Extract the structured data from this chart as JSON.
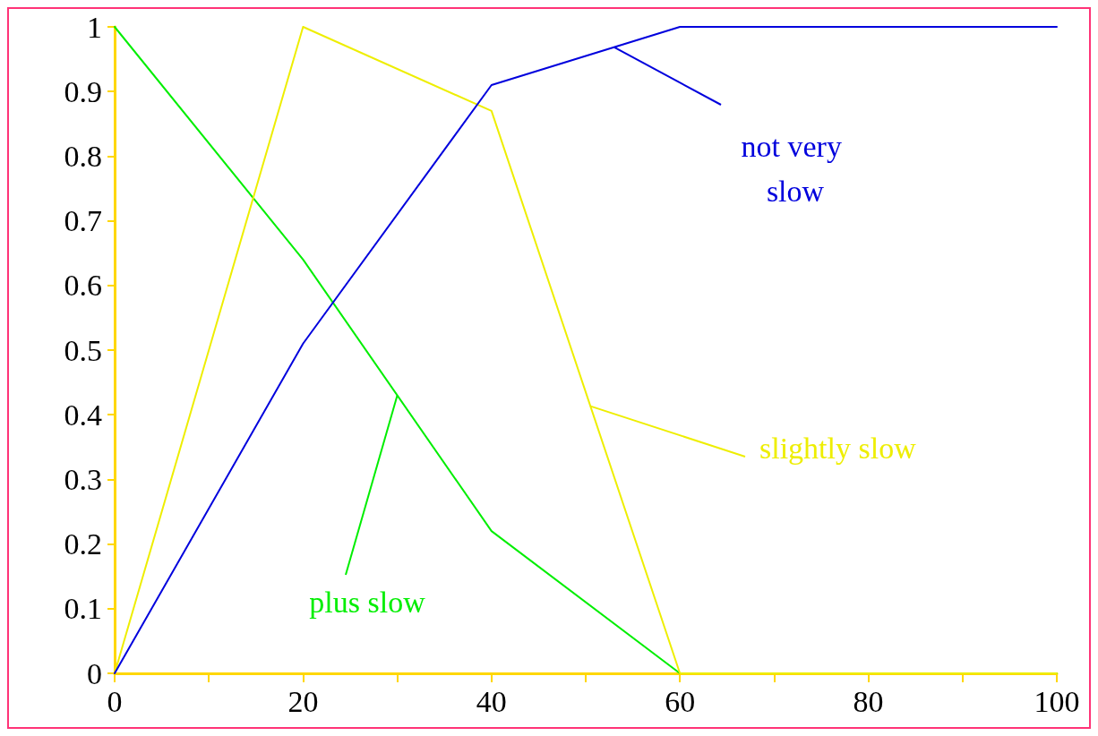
{
  "chart_data": {
    "type": "line",
    "x": [
      0,
      20,
      40,
      60,
      100
    ],
    "series": [
      {
        "name": "plus slow",
        "color": "#00ee00",
        "values": [
          1,
          0.64,
          0.22,
          0,
          0
        ]
      },
      {
        "name": "slightly slow",
        "color": "#eeee00",
        "values": [
          0,
          1,
          0.87,
          0,
          0
        ]
      },
      {
        "name": "not very slow",
        "color": "#0000dd",
        "values": [
          0,
          0.51,
          0.91,
          1,
          1
        ]
      }
    ],
    "xlim": [
      0,
      100
    ],
    "xticks": [
      0,
      {
        "value": 10,
        "label": null
      },
      20,
      {
        "value": 30,
        "label": null
      },
      40,
      {
        "value": 50,
        "label": null
      },
      60,
      {
        "value": 70,
        "label": null
      },
      80,
      {
        "value": 90,
        "label": null
      },
      100
    ],
    "ylim": [
      0,
      1
    ],
    "yticks": [
      0,
      0.1,
      0.2,
      0.3,
      0.4,
      0.5,
      0.6,
      0.7,
      0.8,
      0.9,
      1
    ],
    "grid": false,
    "legend": false,
    "marker": "none",
    "line_style": "solid"
  }
}
